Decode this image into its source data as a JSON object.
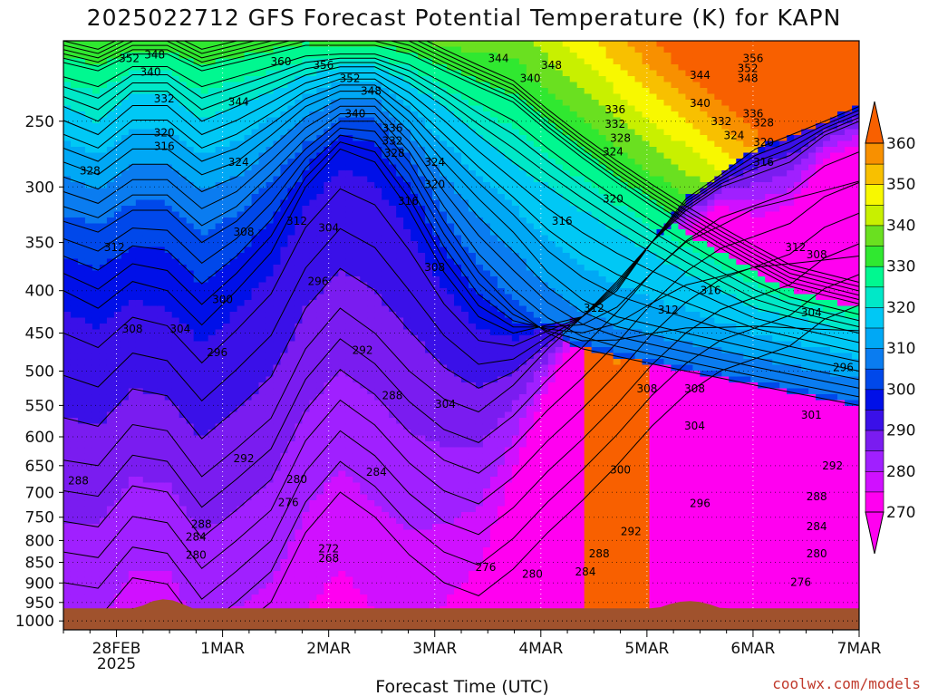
{
  "chart_data": {
    "type": "heatmap",
    "title": "2025022712 GFS Forecast Potential Temperature (K) for KAPN",
    "xlabel": "Forecast Time (UTC)",
    "ylabel": "",
    "credit": "coolwx.com/models",
    "x_ticks": [
      {
        "label": "28FEB",
        "sub": "2025",
        "t": 0.5
      },
      {
        "label": "1MAR",
        "sub": "",
        "t": 1.5
      },
      {
        "label": "2MAR",
        "sub": "",
        "t": 2.5
      },
      {
        "label": "3MAR",
        "sub": "",
        "t": 3.5
      },
      {
        "label": "4MAR",
        "sub": "",
        "t": 4.5
      },
      {
        "label": "5MAR",
        "sub": "",
        "t": 5.5
      },
      {
        "label": "6MAR",
        "sub": "",
        "t": 6.5
      },
      {
        "label": "7MAR",
        "sub": "",
        "t": 7.5
      }
    ],
    "xlim": [
      0,
      7.5
    ],
    "y_ticks": [
      "250",
      "300",
      "350",
      "400",
      "450",
      "500",
      "550",
      "600",
      "650",
      "700",
      "750",
      "800",
      "850",
      "900",
      "950",
      "1000"
    ],
    "y_tick_values": [
      250,
      300,
      350,
      400,
      450,
      500,
      550,
      600,
      650,
      700,
      750,
      800,
      850,
      900,
      950,
      1000
    ],
    "ylim": [
      200,
      1025
    ],
    "y_scale": "log-pressure",
    "grid": true,
    "colorbar": {
      "labels": [
        "360",
        "350",
        "340",
        "330",
        "320",
        "310",
        "300",
        "290",
        "280",
        "270"
      ],
      "bands": [
        {
          "min": 270,
          "max": 275,
          "color": "#ff00f0"
        },
        {
          "min": 275,
          "max": 280,
          "color": "#d010ff"
        },
        {
          "min": 280,
          "max": 285,
          "color": "#a020ff"
        },
        {
          "min": 285,
          "max": 290,
          "color": "#7a1cf0"
        },
        {
          "min": 290,
          "max": 295,
          "color": "#3a10e8"
        },
        {
          "min": 295,
          "max": 300,
          "color": "#0010e8"
        },
        {
          "min": 300,
          "max": 305,
          "color": "#0048ea"
        },
        {
          "min": 305,
          "max": 310,
          "color": "#0a7cf0"
        },
        {
          "min": 310,
          "max": 315,
          "color": "#00a8f5"
        },
        {
          "min": 315,
          "max": 320,
          "color": "#00c8f5"
        },
        {
          "min": 320,
          "max": 325,
          "color": "#00e8c8"
        },
        {
          "min": 325,
          "max": 330,
          "color": "#00f890"
        },
        {
          "min": 330,
          "max": 335,
          "color": "#30e830"
        },
        {
          "min": 335,
          "max": 340,
          "color": "#6ae020"
        },
        {
          "min": 340,
          "max": 345,
          "color": "#c8f000"
        },
        {
          "min": 345,
          "max": 350,
          "color": "#f8f800"
        },
        {
          "min": 350,
          "max": 355,
          "color": "#f8c000"
        },
        {
          "min": 355,
          "max": 360,
          "color": "#f89000"
        },
        {
          "min": 360,
          "max": 370,
          "color": "#f86000"
        }
      ]
    },
    "ground_color": "#a0522d",
    "isentropes": [
      {
        "k": 288,
        "p": [
          640,
          650,
          580,
          590,
          670,
          620,
          570,
          470,
          420,
          450,
          500,
          540,
          560,
          520,
          470,
          430,
          390,
          350,
          320,
          300,
          290,
          280,
          260,
          250
        ]
      },
      {
        "k": 296,
        "p": [
          400,
          420,
          390,
          400,
          440,
          400,
          360,
          300,
          270,
          280,
          320,
          380,
          430,
          450,
          440,
          430,
          400,
          350,
          310,
          290,
          270,
          260,
          250,
          240
        ]
      },
      {
        "k": 304,
        "p": [
          330,
          340,
          320,
          320,
          350,
          330,
          300,
          270,
          250,
          250,
          280,
          330,
          380,
          420,
          450,
          470,
          480,
          490,
          500,
          510,
          520,
          530,
          540,
          550
        ]
      },
      {
        "k": 312,
        "p": [
          280,
          290,
          270,
          270,
          290,
          280,
          260,
          240,
          230,
          230,
          250,
          280,
          310,
          340,
          380,
          410,
          430,
          440,
          450,
          460,
          470,
          480,
          490,
          500
        ]
      },
      {
        "k": 320,
        "p": [
          240,
          250,
          230,
          230,
          250,
          240,
          230,
          220,
          215,
          215,
          225,
          240,
          260,
          280,
          300,
          320,
          340,
          360,
          380,
          400,
          420,
          430,
          440,
          450
        ]
      },
      {
        "k": 328,
        "p": [
          215,
          220,
          210,
          210,
          220,
          215,
          210,
          205,
          205,
          205,
          210,
          220,
          230,
          240,
          260,
          280,
          300,
          320,
          340,
          360,
          380,
          400,
          410,
          420
        ]
      }
    ],
    "contour_labels": [
      {
        "text": "352",
        "t": 0.62,
        "p": 210
      },
      {
        "text": "348",
        "t": 0.86,
        "p": 208
      },
      {
        "text": "340",
        "t": 0.82,
        "p": 218
      },
      {
        "text": "360",
        "t": 2.05,
        "p": 212
      },
      {
        "text": "356",
        "t": 2.45,
        "p": 214
      },
      {
        "text": "352",
        "t": 2.7,
        "p": 222
      },
      {
        "text": "348",
        "t": 2.9,
        "p": 230
      },
      {
        "text": "344",
        "t": 4.1,
        "p": 210
      },
      {
        "text": "348",
        "t": 4.6,
        "p": 214
      },
      {
        "text": "340",
        "t": 4.4,
        "p": 222
      },
      {
        "text": "356",
        "t": 6.5,
        "p": 210
      },
      {
        "text": "352",
        "t": 6.45,
        "p": 216
      },
      {
        "text": "348",
        "t": 6.45,
        "p": 222
      },
      {
        "text": "344",
        "t": 6.0,
        "p": 220
      },
      {
        "text": "332",
        "t": 0.95,
        "p": 235
      },
      {
        "text": "344",
        "t": 1.65,
        "p": 237
      },
      {
        "text": "340",
        "t": 2.75,
        "p": 245
      },
      {
        "text": "336",
        "t": 3.1,
        "p": 255
      },
      {
        "text": "332",
        "t": 3.1,
        "p": 264
      },
      {
        "text": "328",
        "t": 3.12,
        "p": 273
      },
      {
        "text": "324",
        "t": 3.5,
        "p": 280
      },
      {
        "text": "320",
        "t": 3.5,
        "p": 298
      },
      {
        "text": "316",
        "t": 3.25,
        "p": 312
      },
      {
        "text": "336",
        "t": 5.2,
        "p": 242
      },
      {
        "text": "332",
        "t": 5.2,
        "p": 252
      },
      {
        "text": "328",
        "t": 5.25,
        "p": 262
      },
      {
        "text": "324",
        "t": 5.18,
        "p": 272
      },
      {
        "text": "320",
        "t": 5.18,
        "p": 310
      },
      {
        "text": "340",
        "t": 6.0,
        "p": 238
      },
      {
        "text": "336",
        "t": 6.5,
        "p": 245
      },
      {
        "text": "332",
        "t": 6.2,
        "p": 250
      },
      {
        "text": "328",
        "t": 6.6,
        "p": 251
      },
      {
        "text": "324",
        "t": 6.32,
        "p": 260
      },
      {
        "text": "320",
        "t": 6.6,
        "p": 265
      },
      {
        "text": "316",
        "t": 6.6,
        "p": 280
      },
      {
        "text": "320",
        "t": 0.95,
        "p": 258
      },
      {
        "text": "316",
        "t": 0.95,
        "p": 268
      },
      {
        "text": "328",
        "t": 0.25,
        "p": 287
      },
      {
        "text": "324",
        "t": 1.65,
        "p": 280
      },
      {
        "text": "316",
        "t": 4.7,
        "p": 330
      },
      {
        "text": "312",
        "t": 0.48,
        "p": 355
      },
      {
        "text": "308",
        "t": 1.7,
        "p": 340
      },
      {
        "text": "312",
        "t": 2.2,
        "p": 330
      },
      {
        "text": "304",
        "t": 2.5,
        "p": 336
      },
      {
        "text": "308",
        "t": 3.5,
        "p": 375
      },
      {
        "text": "312",
        "t": 5.0,
        "p": 420
      },
      {
        "text": "312",
        "t": 5.7,
        "p": 422
      },
      {
        "text": "316",
        "t": 6.1,
        "p": 400
      },
      {
        "text": "312",
        "t": 6.9,
        "p": 355
      },
      {
        "text": "308",
        "t": 7.1,
        "p": 362
      },
      {
        "text": "304",
        "t": 7.05,
        "p": 425
      },
      {
        "text": "296",
        "t": 2.4,
        "p": 390
      },
      {
        "text": "300",
        "t": 1.5,
        "p": 410
      },
      {
        "text": "296",
        "t": 1.45,
        "p": 475
      },
      {
        "text": "308",
        "t": 0.65,
        "p": 445
      },
      {
        "text": "304",
        "t": 1.1,
        "p": 445
      },
      {
        "text": "292",
        "t": 2.82,
        "p": 472
      },
      {
        "text": "296",
        "t": 7.35,
        "p": 495
      },
      {
        "text": "288",
        "t": 3.1,
        "p": 535
      },
      {
        "text": "308",
        "t": 5.5,
        "p": 525
      },
      {
        "text": "308",
        "t": 5.95,
        "p": 525
      },
      {
        "text": "304",
        "t": 3.6,
        "p": 548
      },
      {
        "text": "304",
        "t": 5.95,
        "p": 582
      },
      {
        "text": "301",
        "t": 7.05,
        "p": 565
      },
      {
        "text": "292",
        "t": 1.7,
        "p": 637
      },
      {
        "text": "292",
        "t": 7.25,
        "p": 650
      },
      {
        "text": "288",
        "t": 0.14,
        "p": 678
      },
      {
        "text": "280",
        "t": 2.2,
        "p": 675
      },
      {
        "text": "284",
        "t": 2.95,
        "p": 662
      },
      {
        "text": "300",
        "t": 5.25,
        "p": 658
      },
      {
        "text": "276",
        "t": 2.12,
        "p": 720
      },
      {
        "text": "296",
        "t": 6.0,
        "p": 722
      },
      {
        "text": "288",
        "t": 7.1,
        "p": 708
      },
      {
        "text": "288",
        "t": 1.3,
        "p": 765
      },
      {
        "text": "284",
        "t": 1.25,
        "p": 792
      },
      {
        "text": "292",
        "t": 5.35,
        "p": 780
      },
      {
        "text": "284",
        "t": 7.1,
        "p": 770
      },
      {
        "text": "280",
        "t": 1.25,
        "p": 833
      },
      {
        "text": "272",
        "t": 2.5,
        "p": 818
      },
      {
        "text": "268",
        "t": 2.5,
        "p": 840
      },
      {
        "text": "288",
        "t": 5.05,
        "p": 830
      },
      {
        "text": "280",
        "t": 7.1,
        "p": 830
      },
      {
        "text": "276",
        "t": 3.98,
        "p": 862
      },
      {
        "text": "280",
        "t": 4.42,
        "p": 878
      },
      {
        "text": "284",
        "t": 4.92,
        "p": 873
      },
      {
        "text": "276",
        "t": 6.95,
        "p": 898
      }
    ]
  }
}
